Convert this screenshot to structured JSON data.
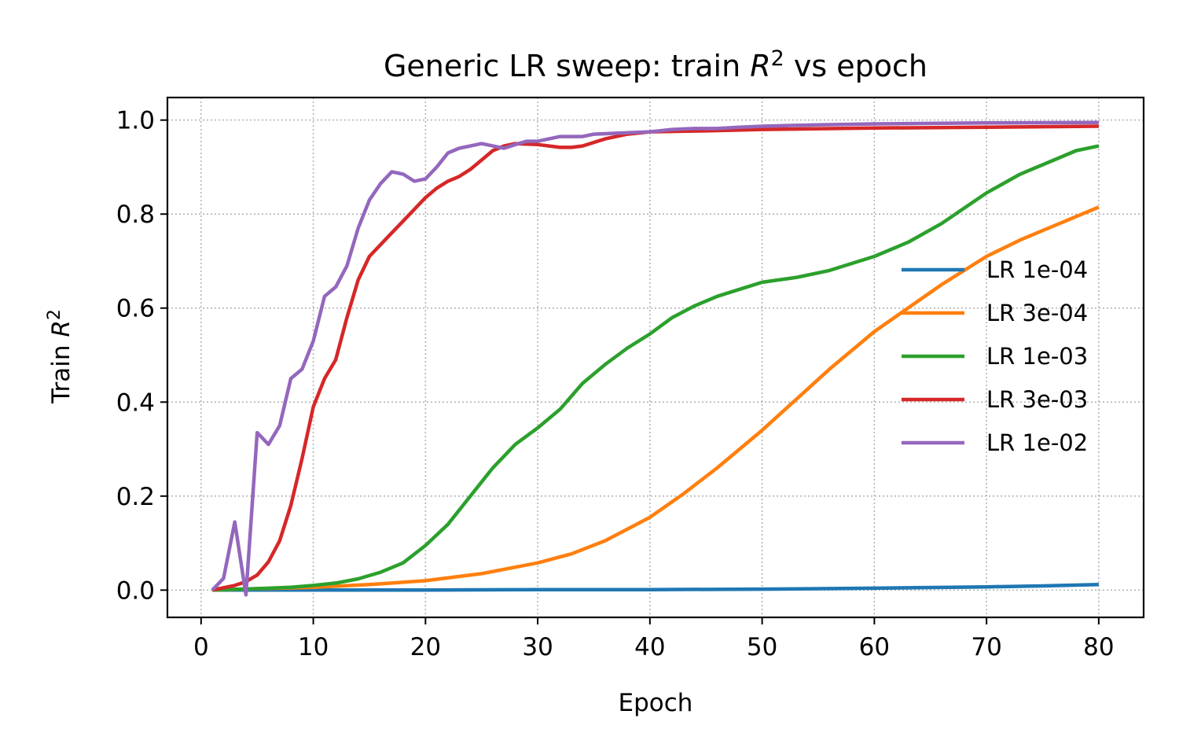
{
  "chart_data": {
    "type": "line",
    "title": "Generic LR sweep: train R² vs epoch",
    "title_parts": {
      "before": "Generic LR sweep: train ",
      "var": "R",
      "sup": "2",
      "after": " vs epoch"
    },
    "xlabel": "Epoch",
    "ylabel": "Train R²",
    "ylabel_parts": {
      "before": "Train ",
      "var": "R",
      "sup": "2"
    },
    "xlim": [
      -3,
      84
    ],
    "ylim": [
      -0.058,
      1.048
    ],
    "xticks": [
      0,
      10,
      20,
      30,
      40,
      50,
      60,
      70,
      80
    ],
    "xtick_labels": [
      "0",
      "10",
      "20",
      "30",
      "40",
      "50",
      "60",
      "70",
      "80"
    ],
    "yticks": [
      0.0,
      0.2,
      0.4,
      0.6,
      0.8,
      1.0
    ],
    "ytick_labels": [
      "0.0",
      "0.2",
      "0.4",
      "0.6",
      "0.8",
      "1.0"
    ],
    "grid": true,
    "legend_position": "center-right",
    "series": [
      {
        "name": "LR 1e-04",
        "color": "#1f77b4",
        "points": [
          [
            1,
            0.0
          ],
          [
            10,
            0.0
          ],
          [
            20,
            0.0
          ],
          [
            30,
            0.001
          ],
          [
            40,
            0.001
          ],
          [
            50,
            0.002
          ],
          [
            60,
            0.004
          ],
          [
            70,
            0.007
          ],
          [
            75,
            0.009
          ],
          [
            80,
            0.012
          ]
        ]
      },
      {
        "name": "LR 3e-04",
        "color": "#ff7f0e",
        "points": [
          [
            1,
            0.0
          ],
          [
            5,
            0.003
          ],
          [
            10,
            0.006
          ],
          [
            15,
            0.012
          ],
          [
            20,
            0.02
          ],
          [
            25,
            0.035
          ],
          [
            30,
            0.058
          ],
          [
            33,
            0.077
          ],
          [
            36,
            0.105
          ],
          [
            40,
            0.155
          ],
          [
            43,
            0.205
          ],
          [
            46,
            0.26
          ],
          [
            50,
            0.34
          ],
          [
            53,
            0.405
          ],
          [
            56,
            0.47
          ],
          [
            60,
            0.55
          ],
          [
            63,
            0.6
          ],
          [
            66,
            0.65
          ],
          [
            70,
            0.71
          ],
          [
            73,
            0.745
          ],
          [
            76,
            0.775
          ],
          [
            80,
            0.815
          ]
        ]
      },
      {
        "name": "LR 1e-03",
        "color": "#2ca02c",
        "points": [
          [
            1,
            0.0
          ],
          [
            5,
            0.003
          ],
          [
            8,
            0.006
          ],
          [
            10,
            0.01
          ],
          [
            12,
            0.015
          ],
          [
            14,
            0.024
          ],
          [
            16,
            0.038
          ],
          [
            18,
            0.058
          ],
          [
            20,
            0.095
          ],
          [
            22,
            0.14
          ],
          [
            24,
            0.2
          ],
          [
            26,
            0.26
          ],
          [
            28,
            0.31
          ],
          [
            30,
            0.345
          ],
          [
            32,
            0.385
          ],
          [
            34,
            0.44
          ],
          [
            36,
            0.48
          ],
          [
            38,
            0.515
          ],
          [
            40,
            0.545
          ],
          [
            42,
            0.58
          ],
          [
            44,
            0.605
          ],
          [
            46,
            0.625
          ],
          [
            48,
            0.64
          ],
          [
            50,
            0.655
          ],
          [
            53,
            0.665
          ],
          [
            56,
            0.68
          ],
          [
            60,
            0.71
          ],
          [
            63,
            0.74
          ],
          [
            66,
            0.78
          ],
          [
            70,
            0.845
          ],
          [
            73,
            0.885
          ],
          [
            76,
            0.915
          ],
          [
            78,
            0.935
          ],
          [
            80,
            0.945
          ]
        ]
      },
      {
        "name": "LR 3e-03",
        "color": "#d62728",
        "points": [
          [
            1,
            0.0
          ],
          [
            2,
            0.005
          ],
          [
            3,
            0.01
          ],
          [
            4,
            0.018
          ],
          [
            5,
            0.032
          ],
          [
            6,
            0.06
          ],
          [
            7,
            0.105
          ],
          [
            8,
            0.18
          ],
          [
            9,
            0.28
          ],
          [
            10,
            0.39
          ],
          [
            11,
            0.45
          ],
          [
            12,
            0.49
          ],
          [
            13,
            0.58
          ],
          [
            14,
            0.66
          ],
          [
            15,
            0.71
          ],
          [
            16,
            0.735
          ],
          [
            17,
            0.76
          ],
          [
            18,
            0.785
          ],
          [
            19,
            0.81
          ],
          [
            20,
            0.835
          ],
          [
            21,
            0.855
          ],
          [
            22,
            0.87
          ],
          [
            23,
            0.88
          ],
          [
            24,
            0.895
          ],
          [
            25,
            0.915
          ],
          [
            26,
            0.935
          ],
          [
            27,
            0.945
          ],
          [
            28,
            0.95
          ],
          [
            30,
            0.948
          ],
          [
            32,
            0.942
          ],
          [
            33,
            0.942
          ],
          [
            34,
            0.945
          ],
          [
            36,
            0.96
          ],
          [
            38,
            0.97
          ],
          [
            40,
            0.975
          ],
          [
            45,
            0.977
          ],
          [
            50,
            0.98
          ],
          [
            60,
            0.983
          ],
          [
            70,
            0.985
          ],
          [
            80,
            0.987
          ]
        ]
      },
      {
        "name": "LR 1e-02",
        "color": "#9467bd",
        "points": [
          [
            1,
            0.0
          ],
          [
            2,
            0.025
          ],
          [
            3,
            0.145
          ],
          [
            4,
            -0.01
          ],
          [
            5,
            0.335
          ],
          [
            6,
            0.31
          ],
          [
            7,
            0.35
          ],
          [
            8,
            0.45
          ],
          [
            9,
            0.47
          ],
          [
            10,
            0.53
          ],
          [
            11,
            0.625
          ],
          [
            12,
            0.645
          ],
          [
            13,
            0.69
          ],
          [
            14,
            0.77
          ],
          [
            15,
            0.83
          ],
          [
            16,
            0.865
          ],
          [
            17,
            0.89
          ],
          [
            18,
            0.885
          ],
          [
            19,
            0.87
          ],
          [
            20,
            0.875
          ],
          [
            21,
            0.9
          ],
          [
            22,
            0.93
          ],
          [
            23,
            0.94
          ],
          [
            24,
            0.945
          ],
          [
            25,
            0.95
          ],
          [
            26,
            0.945
          ],
          [
            27,
            0.94
          ],
          [
            28,
            0.948
          ],
          [
            29,
            0.955
          ],
          [
            30,
            0.955
          ],
          [
            31,
            0.96
          ],
          [
            32,
            0.965
          ],
          [
            34,
            0.965
          ],
          [
            35,
            0.97
          ],
          [
            37,
            0.972
          ],
          [
            40,
            0.975
          ],
          [
            42,
            0.98
          ],
          [
            44,
            0.982
          ],
          [
            46,
            0.982
          ],
          [
            48,
            0.985
          ],
          [
            50,
            0.987
          ],
          [
            55,
            0.99
          ],
          [
            60,
            0.992
          ],
          [
            70,
            0.994
          ],
          [
            80,
            0.995
          ]
        ]
      }
    ]
  }
}
